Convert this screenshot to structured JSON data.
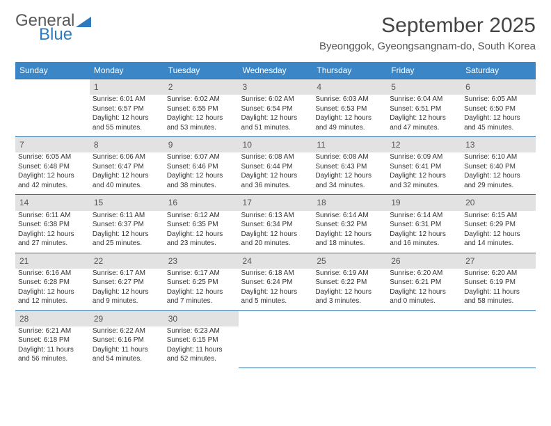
{
  "logo": {
    "primary": "General",
    "secondary": "Blue"
  },
  "title": "September 2025",
  "subtitle": "Byeonggok, Gyeongsangnam-do, South Korea",
  "colors": {
    "header_bg": "#3b86c7",
    "header_text": "#ffffff",
    "daynum_bg": "#e2e2e2",
    "border": "#2f6fa8",
    "logo_gray": "#58595b",
    "logo_blue": "#2f79bd"
  },
  "calendar": {
    "type": "table",
    "days": [
      "Sunday",
      "Monday",
      "Tuesday",
      "Wednesday",
      "Thursday",
      "Friday",
      "Saturday"
    ],
    "weeks": [
      [
        {
          "num": "",
          "lines": []
        },
        {
          "num": "1",
          "lines": [
            "Sunrise: 6:01 AM",
            "Sunset: 6:57 PM",
            "Daylight: 12 hours and 55 minutes."
          ]
        },
        {
          "num": "2",
          "lines": [
            "Sunrise: 6:02 AM",
            "Sunset: 6:55 PM",
            "Daylight: 12 hours and 53 minutes."
          ]
        },
        {
          "num": "3",
          "lines": [
            "Sunrise: 6:02 AM",
            "Sunset: 6:54 PM",
            "Daylight: 12 hours and 51 minutes."
          ]
        },
        {
          "num": "4",
          "lines": [
            "Sunrise: 6:03 AM",
            "Sunset: 6:53 PM",
            "Daylight: 12 hours and 49 minutes."
          ]
        },
        {
          "num": "5",
          "lines": [
            "Sunrise: 6:04 AM",
            "Sunset: 6:51 PM",
            "Daylight: 12 hours and 47 minutes."
          ]
        },
        {
          "num": "6",
          "lines": [
            "Sunrise: 6:05 AM",
            "Sunset: 6:50 PM",
            "Daylight: 12 hours and 45 minutes."
          ]
        }
      ],
      [
        {
          "num": "7",
          "lines": [
            "Sunrise: 6:05 AM",
            "Sunset: 6:48 PM",
            "Daylight: 12 hours and 42 minutes."
          ]
        },
        {
          "num": "8",
          "lines": [
            "Sunrise: 6:06 AM",
            "Sunset: 6:47 PM",
            "Daylight: 12 hours and 40 minutes."
          ]
        },
        {
          "num": "9",
          "lines": [
            "Sunrise: 6:07 AM",
            "Sunset: 6:46 PM",
            "Daylight: 12 hours and 38 minutes."
          ]
        },
        {
          "num": "10",
          "lines": [
            "Sunrise: 6:08 AM",
            "Sunset: 6:44 PM",
            "Daylight: 12 hours and 36 minutes."
          ]
        },
        {
          "num": "11",
          "lines": [
            "Sunrise: 6:08 AM",
            "Sunset: 6:43 PM",
            "Daylight: 12 hours and 34 minutes."
          ]
        },
        {
          "num": "12",
          "lines": [
            "Sunrise: 6:09 AM",
            "Sunset: 6:41 PM",
            "Daylight: 12 hours and 32 minutes."
          ]
        },
        {
          "num": "13",
          "lines": [
            "Sunrise: 6:10 AM",
            "Sunset: 6:40 PM",
            "Daylight: 12 hours and 29 minutes."
          ]
        }
      ],
      [
        {
          "num": "14",
          "lines": [
            "Sunrise: 6:11 AM",
            "Sunset: 6:38 PM",
            "Daylight: 12 hours and 27 minutes."
          ]
        },
        {
          "num": "15",
          "lines": [
            "Sunrise: 6:11 AM",
            "Sunset: 6:37 PM",
            "Daylight: 12 hours and 25 minutes."
          ]
        },
        {
          "num": "16",
          "lines": [
            "Sunrise: 6:12 AM",
            "Sunset: 6:35 PM",
            "Daylight: 12 hours and 23 minutes."
          ]
        },
        {
          "num": "17",
          "lines": [
            "Sunrise: 6:13 AM",
            "Sunset: 6:34 PM",
            "Daylight: 12 hours and 20 minutes."
          ]
        },
        {
          "num": "18",
          "lines": [
            "Sunrise: 6:14 AM",
            "Sunset: 6:32 PM",
            "Daylight: 12 hours and 18 minutes."
          ]
        },
        {
          "num": "19",
          "lines": [
            "Sunrise: 6:14 AM",
            "Sunset: 6:31 PM",
            "Daylight: 12 hours and 16 minutes."
          ]
        },
        {
          "num": "20",
          "lines": [
            "Sunrise: 6:15 AM",
            "Sunset: 6:29 PM",
            "Daylight: 12 hours and 14 minutes."
          ]
        }
      ],
      [
        {
          "num": "21",
          "lines": [
            "Sunrise: 6:16 AM",
            "Sunset: 6:28 PM",
            "Daylight: 12 hours and 12 minutes."
          ]
        },
        {
          "num": "22",
          "lines": [
            "Sunrise: 6:17 AM",
            "Sunset: 6:27 PM",
            "Daylight: 12 hours and 9 minutes."
          ]
        },
        {
          "num": "23",
          "lines": [
            "Sunrise: 6:17 AM",
            "Sunset: 6:25 PM",
            "Daylight: 12 hours and 7 minutes."
          ]
        },
        {
          "num": "24",
          "lines": [
            "Sunrise: 6:18 AM",
            "Sunset: 6:24 PM",
            "Daylight: 12 hours and 5 minutes."
          ]
        },
        {
          "num": "25",
          "lines": [
            "Sunrise: 6:19 AM",
            "Sunset: 6:22 PM",
            "Daylight: 12 hours and 3 minutes."
          ]
        },
        {
          "num": "26",
          "lines": [
            "Sunrise: 6:20 AM",
            "Sunset: 6:21 PM",
            "Daylight: 12 hours and 0 minutes."
          ]
        },
        {
          "num": "27",
          "lines": [
            "Sunrise: 6:20 AM",
            "Sunset: 6:19 PM",
            "Daylight: 11 hours and 58 minutes."
          ]
        }
      ],
      [
        {
          "num": "28",
          "lines": [
            "Sunrise: 6:21 AM",
            "Sunset: 6:18 PM",
            "Daylight: 11 hours and 56 minutes."
          ]
        },
        {
          "num": "29",
          "lines": [
            "Sunrise: 6:22 AM",
            "Sunset: 6:16 PM",
            "Daylight: 11 hours and 54 minutes."
          ]
        },
        {
          "num": "30",
          "lines": [
            "Sunrise: 6:23 AM",
            "Sunset: 6:15 PM",
            "Daylight: 11 hours and 52 minutes."
          ]
        },
        {
          "num": "",
          "lines": []
        },
        {
          "num": "",
          "lines": []
        },
        {
          "num": "",
          "lines": []
        },
        {
          "num": "",
          "lines": []
        }
      ]
    ]
  }
}
